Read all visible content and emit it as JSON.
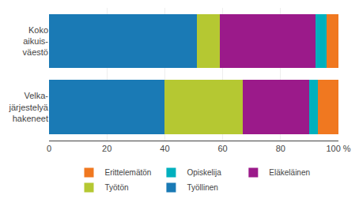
{
  "chart_data": {
    "type": "bar",
    "orientation": "horizontal",
    "stacked": true,
    "categories": [
      "Koko\naikuis-\nväestö",
      "Velka-\njärjestelyä\nhakeneet"
    ],
    "series": [
      {
        "name": "Työllinen",
        "color": "#1a7ab5",
        "values": [
          51,
          40
        ]
      },
      {
        "name": "Työtön",
        "color": "#b5c832",
        "values": [
          8,
          27
        ]
      },
      {
        "name": "Eläkeläinen",
        "color": "#9b1a8a",
        "values": [
          33,
          23
        ]
      },
      {
        "name": "Opiskelija",
        "color": "#00b0be",
        "values": [
          4,
          3
        ]
      },
      {
        "name": "Erittelemätön",
        "color": "#f07820",
        "values": [
          4,
          7
        ]
      }
    ],
    "xlim": [
      0,
      100
    ],
    "xticks": [
      0,
      20,
      40,
      60,
      80,
      {
        "value": 100,
        "label": "100 %"
      }
    ],
    "grid": true,
    "legend": "bottom"
  }
}
